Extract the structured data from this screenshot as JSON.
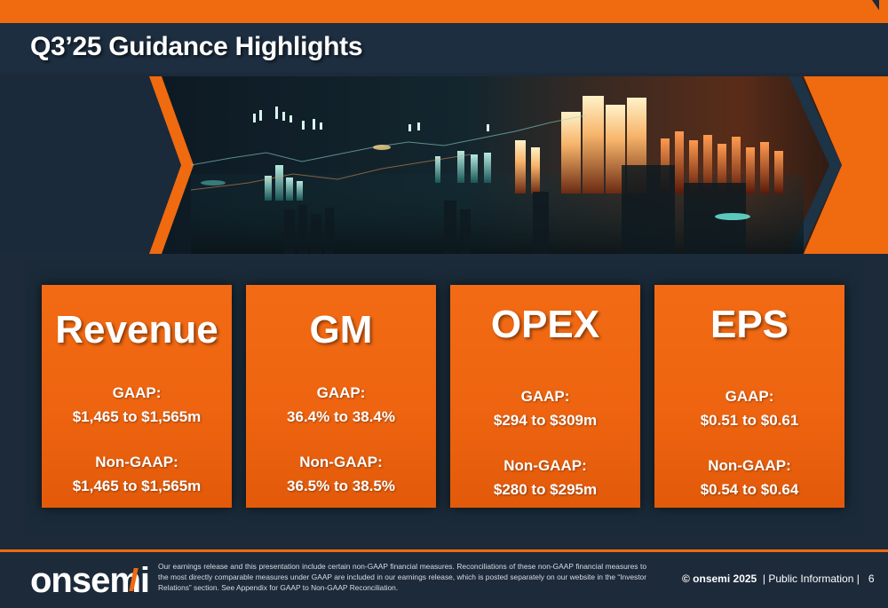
{
  "slide": {
    "title": "Q3’25 Guidance Highlights"
  },
  "cards": [
    {
      "title": "Revenue",
      "gaap_label": "GAAP:",
      "gaap_value": "$1,465 to $1,565m",
      "nongaap_label": "Non-GAAP:",
      "nongaap_value": "$1,465 to $1,565m"
    },
    {
      "title": "GM",
      "gaap_label": "GAAP:",
      "gaap_value": "36.4% to 38.4%",
      "nongaap_label": "Non-GAAP:",
      "nongaap_value": "36.5% to 38.5%"
    },
    {
      "title": "OPEX",
      "gaap_label": "GAAP:",
      "gaap_value": "$294 to $309m",
      "nongaap_label": "Non-GAAP:",
      "nongaap_value": "$280 to $295m"
    },
    {
      "title": "EPS",
      "gaap_label": "GAAP:",
      "gaap_value": "$0.51 to $0.61",
      "nongaap_label": "Non-GAAP:",
      "nongaap_value": "$0.54 to $0.64"
    }
  ],
  "footer": {
    "logo_text": "onsemi",
    "disclaimer": "Our earnings release and this presentation include certain non-GAAP financial measures. Reconciliations of these non-GAAP financial measures to the most directly comparable measures under GAAP are included in our earnings release, which is posted separately on our website in the “Investor Relations” section. See Appendix for GAAP to Non-GAAP Reconciliation.",
    "copyright": "© onsemi 2025",
    "classification": "| Public Information |",
    "page_number": "6"
  },
  "colors": {
    "accent_orange": "#f06a10",
    "navy_background": "#1c2a3a"
  },
  "icons": {
    "banner": "financial-chart-illustration"
  }
}
